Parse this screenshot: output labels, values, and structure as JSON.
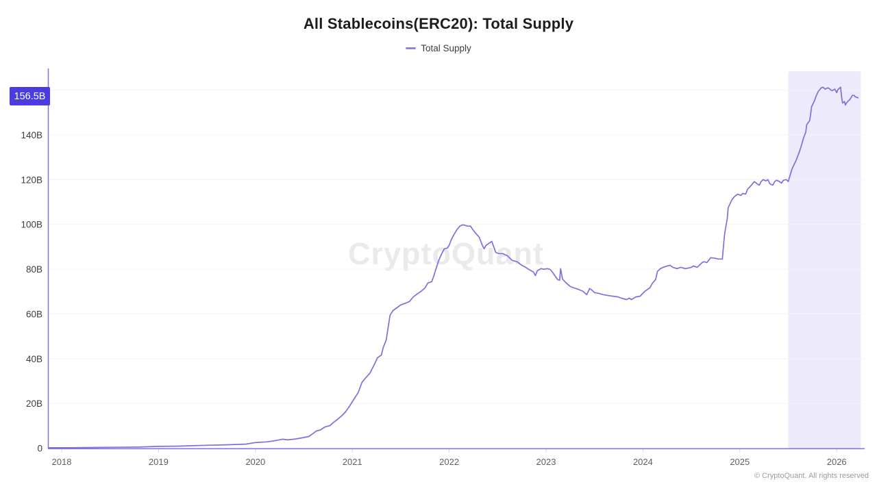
{
  "header": {
    "title": "All Stablecoins(ERC20): Total Supply"
  },
  "watermark": "CryptoQuant",
  "footer": {
    "copyright": "© CryptoQuant. All rights reserved"
  },
  "colors": {
    "line": "#7b70dd",
    "axis": "#8077e0",
    "legend_marker": "#8d85e6",
    "badge_bg": "#4a3ce1",
    "badge_text": "#ffffff",
    "highlight": "#edeafb",
    "grid": "#f4f4f6",
    "tick_mark": "#d7d7d7",
    "y_label_text": "#3d3d3d",
    "x_label_text": "#5f5f5f",
    "watermark_text": "#eaeaea"
  },
  "chart_data": {
    "type": "line",
    "title": "All Stablecoins(ERC20): Total Supply",
    "xlabel": "",
    "ylabel": "",
    "legend_position": "top",
    "grid": "horizontal",
    "x_tick_values": [
      2018,
      2019,
      2020,
      2021,
      2022,
      2023,
      2024,
      2025,
      2026
    ],
    "x_tick_labels": [
      "2018",
      "2019",
      "2020",
      "2021",
      "2022",
      "2023",
      "2024",
      "2025",
      "2026"
    ],
    "y_tick_values": [
      0,
      20,
      40,
      60,
      80,
      100,
      120,
      140,
      160
    ],
    "y_tick_labels": [
      "0",
      "20B",
      "40B",
      "60B",
      "80B",
      "100B",
      "120B",
      "140B",
      "160B"
    ],
    "x_range": [
      2017.86,
      2026.29
    ],
    "y_range": [
      0,
      169
    ],
    "highlight_region": {
      "from": 2025.5,
      "to": 2026.25
    },
    "last_value": 156.5,
    "last_value_label": "156.5B",
    "series": [
      {
        "name": "Total Supply",
        "color": "#7b70dd",
        "points": [
          [
            2017.87,
            0.2
          ],
          [
            2018.1,
            0.2
          ],
          [
            2018.35,
            0.3
          ],
          [
            2018.6,
            0.4
          ],
          [
            2018.8,
            0.5
          ],
          [
            2019.0,
            0.8
          ],
          [
            2019.2,
            0.9
          ],
          [
            2019.35,
            1.1
          ],
          [
            2019.5,
            1.3
          ],
          [
            2019.7,
            1.5
          ],
          [
            2019.9,
            1.8
          ],
          [
            2020.0,
            2.5
          ],
          [
            2020.12,
            2.8
          ],
          [
            2020.21,
            3.4
          ],
          [
            2020.28,
            4.0
          ],
          [
            2020.33,
            3.7
          ],
          [
            2020.4,
            4.0
          ],
          [
            2020.48,
            4.6
          ],
          [
            2020.55,
            5.2
          ],
          [
            2020.6,
            6.7
          ],
          [
            2020.63,
            7.7
          ],
          [
            2020.67,
            8.1
          ],
          [
            2020.72,
            9.5
          ],
          [
            2020.77,
            10.1
          ],
          [
            2020.8,
            11.3
          ],
          [
            2020.84,
            12.6
          ],
          [
            2020.89,
            14.4
          ],
          [
            2020.93,
            16.2
          ],
          [
            2020.97,
            18.7
          ],
          [
            2021.01,
            21.4
          ],
          [
            2021.06,
            24.8
          ],
          [
            2021.1,
            29.4
          ],
          [
            2021.14,
            31.5
          ],
          [
            2021.18,
            33.4
          ],
          [
            2021.23,
            37.6
          ],
          [
            2021.26,
            40.4
          ],
          [
            2021.3,
            41.6
          ],
          [
            2021.32,
            45.0
          ],
          [
            2021.35,
            48.4
          ],
          [
            2021.37,
            53.9
          ],
          [
            2021.39,
            59.4
          ],
          [
            2021.42,
            61.5
          ],
          [
            2021.46,
            62.7
          ],
          [
            2021.5,
            64.0
          ],
          [
            2021.54,
            64.6
          ],
          [
            2021.59,
            65.5
          ],
          [
            2021.63,
            67.6
          ],
          [
            2021.67,
            68.9
          ],
          [
            2021.71,
            70.1
          ],
          [
            2021.75,
            71.6
          ],
          [
            2021.78,
            73.8
          ],
          [
            2021.82,
            74.4
          ],
          [
            2021.84,
            76.8
          ],
          [
            2021.86,
            79.6
          ],
          [
            2021.89,
            83.6
          ],
          [
            2021.92,
            86.6
          ],
          [
            2021.95,
            89.1
          ],
          [
            2021.98,
            89.4
          ],
          [
            2022.0,
            90.6
          ],
          [
            2022.02,
            93.0
          ],
          [
            2022.05,
            95.5
          ],
          [
            2022.08,
            97.6
          ],
          [
            2022.11,
            99.2
          ],
          [
            2022.14,
            99.8
          ],
          [
            2022.17,
            99.5
          ],
          [
            2022.19,
            99.2
          ],
          [
            2022.22,
            99.2
          ],
          [
            2022.24,
            97.9
          ],
          [
            2022.26,
            96.7
          ],
          [
            2022.29,
            95.2
          ],
          [
            2022.31,
            94.3
          ],
          [
            2022.34,
            90.9
          ],
          [
            2022.36,
            89.1
          ],
          [
            2022.38,
            90.6
          ],
          [
            2022.41,
            91.5
          ],
          [
            2022.44,
            92.4
          ],
          [
            2022.46,
            90.0
          ],
          [
            2022.48,
            87.5
          ],
          [
            2022.51,
            86.9
          ],
          [
            2022.55,
            86.9
          ],
          [
            2022.6,
            86.0
          ],
          [
            2022.65,
            83.9
          ],
          [
            2022.7,
            83.3
          ],
          [
            2022.75,
            81.7
          ],
          [
            2022.79,
            80.8
          ],
          [
            2022.82,
            79.9
          ],
          [
            2022.87,
            78.7
          ],
          [
            2022.89,
            77.1
          ],
          [
            2022.91,
            79.3
          ],
          [
            2022.95,
            80.2
          ],
          [
            2022.98,
            79.9
          ],
          [
            2023.01,
            80.2
          ],
          [
            2023.04,
            79.9
          ],
          [
            2023.06,
            79.0
          ],
          [
            2023.09,
            77.1
          ],
          [
            2023.12,
            75.3
          ],
          [
            2023.14,
            75.0
          ],
          [
            2023.15,
            80.2
          ],
          [
            2023.17,
            75.6
          ],
          [
            2023.2,
            74.1
          ],
          [
            2023.25,
            72.2
          ],
          [
            2023.29,
            71.6
          ],
          [
            2023.33,
            71.0
          ],
          [
            2023.38,
            70.1
          ],
          [
            2023.42,
            68.6
          ],
          [
            2023.45,
            71.3
          ],
          [
            2023.47,
            70.7
          ],
          [
            2023.5,
            69.5
          ],
          [
            2023.54,
            69.2
          ],
          [
            2023.59,
            68.6
          ],
          [
            2023.64,
            68.2
          ],
          [
            2023.69,
            67.9
          ],
          [
            2023.74,
            67.6
          ],
          [
            2023.78,
            67.0
          ],
          [
            2023.83,
            66.4
          ],
          [
            2023.86,
            67.0
          ],
          [
            2023.88,
            66.4
          ],
          [
            2023.93,
            67.6
          ],
          [
            2023.97,
            67.9
          ],
          [
            2024.02,
            70.1
          ],
          [
            2024.07,
            71.6
          ],
          [
            2024.1,
            73.8
          ],
          [
            2024.13,
            75.3
          ],
          [
            2024.15,
            79.0
          ],
          [
            2024.18,
            80.2
          ],
          [
            2024.21,
            80.8
          ],
          [
            2024.25,
            81.4
          ],
          [
            2024.28,
            81.7
          ],
          [
            2024.31,
            80.8
          ],
          [
            2024.35,
            80.2
          ],
          [
            2024.39,
            80.8
          ],
          [
            2024.44,
            80.2
          ],
          [
            2024.5,
            80.8
          ],
          [
            2024.52,
            81.4
          ],
          [
            2024.56,
            80.8
          ],
          [
            2024.61,
            82.9
          ],
          [
            2024.63,
            83.3
          ],
          [
            2024.66,
            82.9
          ],
          [
            2024.7,
            85.1
          ],
          [
            2024.75,
            84.8
          ],
          [
            2024.78,
            84.5
          ],
          [
            2024.82,
            84.5
          ],
          [
            2024.84,
            94.6
          ],
          [
            2024.85,
            97.6
          ],
          [
            2024.87,
            102.5
          ],
          [
            2024.88,
            107.4
          ],
          [
            2024.9,
            109.3
          ],
          [
            2024.92,
            111.1
          ],
          [
            2024.95,
            112.6
          ],
          [
            2024.98,
            113.5
          ],
          [
            2025.01,
            112.9
          ],
          [
            2025.03,
            113.8
          ],
          [
            2025.06,
            113.5
          ],
          [
            2025.08,
            115.7
          ],
          [
            2025.12,
            117.5
          ],
          [
            2025.15,
            119.1
          ],
          [
            2025.17,
            118.4
          ],
          [
            2025.2,
            117.5
          ],
          [
            2025.22,
            119.1
          ],
          [
            2025.24,
            120.0
          ],
          [
            2025.27,
            119.4
          ],
          [
            2025.29,
            120.0
          ],
          [
            2025.31,
            118.1
          ],
          [
            2025.34,
            117.5
          ],
          [
            2025.36,
            119.1
          ],
          [
            2025.38,
            119.7
          ],
          [
            2025.41,
            119.1
          ],
          [
            2025.43,
            118.4
          ],
          [
            2025.45,
            119.7
          ],
          [
            2025.48,
            120.0
          ],
          [
            2025.5,
            119.1
          ],
          [
            2025.52,
            122.1
          ],
          [
            2025.54,
            124.9
          ],
          [
            2025.56,
            126.7
          ],
          [
            2025.58,
            128.5
          ],
          [
            2025.6,
            130.7
          ],
          [
            2025.62,
            133.1
          ],
          [
            2025.64,
            135.9
          ],
          [
            2025.66,
            138.9
          ],
          [
            2025.68,
            141.1
          ],
          [
            2025.69,
            144.5
          ],
          [
            2025.72,
            146.3
          ],
          [
            2025.73,
            148.7
          ],
          [
            2025.74,
            152.4
          ],
          [
            2025.77,
            155.2
          ],
          [
            2025.79,
            157.6
          ],
          [
            2025.81,
            159.4
          ],
          [
            2025.84,
            161.0
          ],
          [
            2025.86,
            161.3
          ],
          [
            2025.88,
            160.4
          ],
          [
            2025.91,
            161.0
          ],
          [
            2025.93,
            160.4
          ],
          [
            2025.95,
            159.7
          ],
          [
            2025.98,
            160.4
          ],
          [
            2026.0,
            158.8
          ],
          [
            2026.01,
            160.1
          ],
          [
            2026.04,
            161.3
          ],
          [
            2026.05,
            157.0
          ],
          [
            2026.06,
            154.2
          ],
          [
            2026.08,
            154.9
          ],
          [
            2026.09,
            153.3
          ],
          [
            2026.1,
            154.2
          ],
          [
            2026.12,
            155.2
          ],
          [
            2026.13,
            155.5
          ],
          [
            2026.15,
            156.7
          ],
          [
            2026.16,
            157.6
          ],
          [
            2026.18,
            157.6
          ],
          [
            2026.19,
            157.0
          ],
          [
            2026.21,
            156.7
          ],
          [
            2026.22,
            156.5
          ]
        ]
      }
    ]
  }
}
